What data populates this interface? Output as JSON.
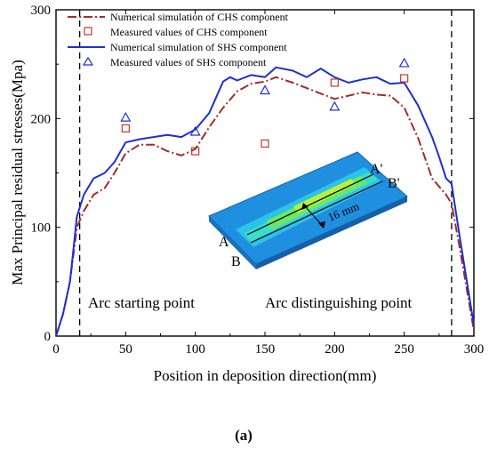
{
  "figure": {
    "panel_label": "(a)"
  },
  "chart_data": {
    "type": "line",
    "title": "",
    "xlabel": "Position in deposition direction(mm)",
    "ylabel": "Max Principal residual stresses(Mpa)",
    "xlim": [
      0,
      300
    ],
    "ylim": [
      0,
      300
    ],
    "xticks": [
      0,
      50,
      100,
      150,
      200,
      250,
      300
    ],
    "yticks": [
      0,
      100,
      200,
      300
    ],
    "grid": false,
    "legend_position": "top-left",
    "colors": {
      "chs": "#A52A2A",
      "sns": "#1E2FD0",
      "measured_chs": "#C0392B",
      "measured_sns": "#2030D8"
    },
    "series": [
      {
        "name": "Numerical simulation of CHS component",
        "kind": "line",
        "style": "dashdot",
        "color": "#A52A2A",
        "x": [
          0,
          5,
          10,
          15,
          20,
          27,
          35,
          42,
          50,
          60,
          70,
          80,
          90,
          100,
          110,
          120,
          130,
          140,
          150,
          158,
          170,
          180,
          190,
          200,
          210,
          220,
          230,
          240,
          250,
          260,
          270,
          280,
          284,
          290,
          300
        ],
        "y": [
          0,
          20,
          50,
          100,
          115,
          130,
          136,
          150,
          168,
          176,
          176,
          170,
          166,
          172,
          192,
          210,
          225,
          232,
          234,
          238,
          233,
          228,
          223,
          218,
          221,
          224,
          222,
          221,
          210,
          182,
          145,
          130,
          122,
          80,
          5
        ]
      },
      {
        "name": "Numerical simulation of SHS component",
        "kind": "line",
        "style": "solid",
        "color": "#1E2FD0",
        "x": [
          0,
          5,
          10,
          15,
          20,
          27,
          35,
          42,
          50,
          60,
          70,
          80,
          90,
          100,
          110,
          120,
          125,
          130,
          140,
          150,
          158,
          170,
          180,
          190,
          200,
          210,
          220,
          230,
          240,
          250,
          260,
          270,
          275,
          280,
          284,
          290,
          300
        ],
        "y": [
          0,
          20,
          50,
          110,
          130,
          145,
          150,
          160,
          178,
          181,
          183,
          185,
          183,
          190,
          205,
          234,
          238,
          235,
          240,
          238,
          247,
          244,
          238,
          246,
          238,
          233,
          236,
          238,
          232,
          233,
          212,
          183,
          165,
          145,
          140,
          90,
          10
        ]
      },
      {
        "name": "Measured values of CHS component",
        "kind": "scatter",
        "marker": "square",
        "color": "#C0392B",
        "x": [
          50,
          100,
          150,
          200,
          250
        ],
        "y": [
          191,
          170,
          177,
          233,
          237
        ]
      },
      {
        "name": "Measured values of SHS component",
        "kind": "scatter",
        "marker": "triangle",
        "color": "#2030D8",
        "x": [
          50,
          100,
          150,
          200,
          250
        ],
        "y": [
          201,
          188,
          226,
          211,
          251
        ]
      }
    ],
    "reference_lines": {
      "x": [
        17,
        284
      ]
    },
    "annotations": {
      "arc_start": "Arc starting point",
      "arc_end": "Arc distinguishing point",
      "label_a": "A",
      "label_b": "B",
      "label_a_prime": "A'",
      "label_b_prime": "B'",
      "weld_width": "16 mm"
    }
  }
}
